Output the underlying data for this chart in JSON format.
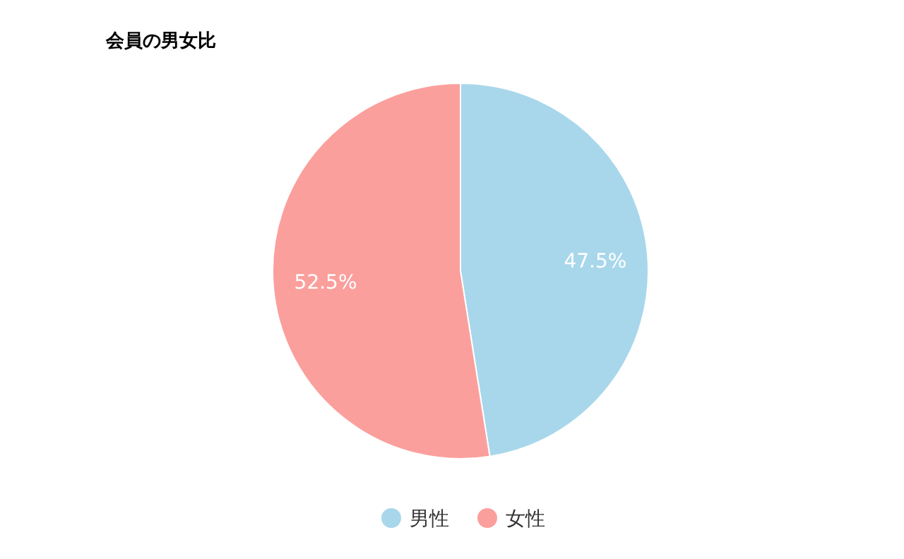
{
  "chart_data": {
    "type": "pie",
    "title": "会員の男女比",
    "categories": [
      "男性",
      "女性"
    ],
    "values": [
      47.5,
      52.5
    ],
    "colors": [
      "#a8d7eb",
      "#fb9f9d"
    ],
    "value_labels": [
      "47.5%",
      "52.5%"
    ],
    "legend": "bottom"
  }
}
